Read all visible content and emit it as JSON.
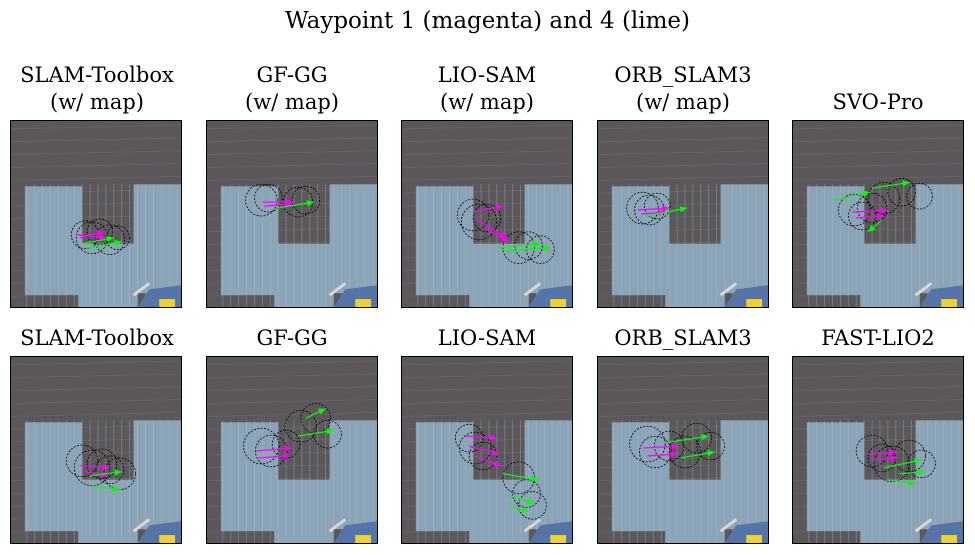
{
  "figure": {
    "title": "Waypoint 1 (magenta) and 4 (lime)"
  },
  "colors": {
    "waypoint_1": "#ff00ff",
    "waypoint_4": "#00ff00",
    "uncertainty_circle": "#000000",
    "floor_dark": "#5b575a",
    "mat_light": "#8ba4b8"
  },
  "rows": [
    {
      "panels": [
        {
          "title_line1": "SLAM-Toolbox",
          "title_line2": "(w/ map)"
        },
        {
          "title_line1": "GF-GG",
          "title_line2": "(w/ map)"
        },
        {
          "title_line1": "LIO-SAM",
          "title_line2": "(w/ map)"
        },
        {
          "title_line1": "ORB_SLAM3",
          "title_line2": "(w/ map)"
        },
        {
          "title_line1": "SVO-Pro",
          "title_line2": ""
        }
      ]
    },
    {
      "panels": [
        {
          "title_line1": "SLAM-Toolbox",
          "title_line2": ""
        },
        {
          "title_line1": "GF-GG",
          "title_line2": ""
        },
        {
          "title_line1": "LIO-SAM",
          "title_line2": ""
        },
        {
          "title_line1": "ORB_SLAM3",
          "title_line2": ""
        },
        {
          "title_line1": "FAST-LIO2",
          "title_line2": ""
        }
      ]
    }
  ]
}
